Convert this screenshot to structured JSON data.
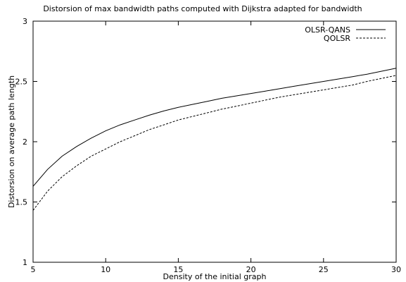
{
  "chart_data": {
    "type": "line",
    "title": "Distorsion of max bandwidth paths computed with Dijkstra adapted for bandwidth",
    "xlabel": "Density of the initial graph",
    "ylabel": "Distorsion on average path length",
    "xlim": [
      5,
      30
    ],
    "ylim": [
      1,
      3
    ],
    "xticks": [
      5,
      10,
      15,
      20,
      25,
      30
    ],
    "yticks": [
      1,
      1.5,
      2,
      2.5,
      3
    ],
    "xtick_labels": [
      "5",
      "10",
      "15",
      "20",
      "25",
      "30"
    ],
    "ytick_labels": [
      "1",
      "1.5",
      "2",
      "2.5",
      "3"
    ],
    "grid": false,
    "legend_position": "top-right",
    "series": [
      {
        "name": "OLSR-QANS",
        "style": "solid",
        "color": "#000000",
        "x": [
          5,
          6,
          7,
          8,
          9,
          10,
          11,
          12,
          13,
          14,
          15,
          16,
          17,
          18,
          19,
          20,
          21,
          22,
          23,
          24,
          25,
          26,
          27,
          28,
          29,
          30
        ],
        "y": [
          1.63,
          1.77,
          1.88,
          1.96,
          2.03,
          2.09,
          2.14,
          2.18,
          2.22,
          2.255,
          2.285,
          2.31,
          2.335,
          2.36,
          2.38,
          2.4,
          2.42,
          2.44,
          2.46,
          2.48,
          2.5,
          2.52,
          2.54,
          2.56,
          2.585,
          2.61
        ]
      },
      {
        "name": "QOLSR",
        "style": "dashed",
        "color": "#000000",
        "x": [
          5,
          6,
          7,
          8,
          9,
          10,
          11,
          12,
          13,
          14,
          15,
          16,
          17,
          18,
          19,
          20,
          21,
          22,
          23,
          24,
          25,
          26,
          27,
          28,
          29,
          30
        ],
        "y": [
          1.43,
          1.59,
          1.71,
          1.8,
          1.88,
          1.94,
          2.0,
          2.05,
          2.1,
          2.14,
          2.18,
          2.21,
          2.24,
          2.27,
          2.295,
          2.32,
          2.345,
          2.37,
          2.39,
          2.41,
          2.43,
          2.45,
          2.47,
          2.5,
          2.525,
          2.55
        ]
      }
    ]
  }
}
